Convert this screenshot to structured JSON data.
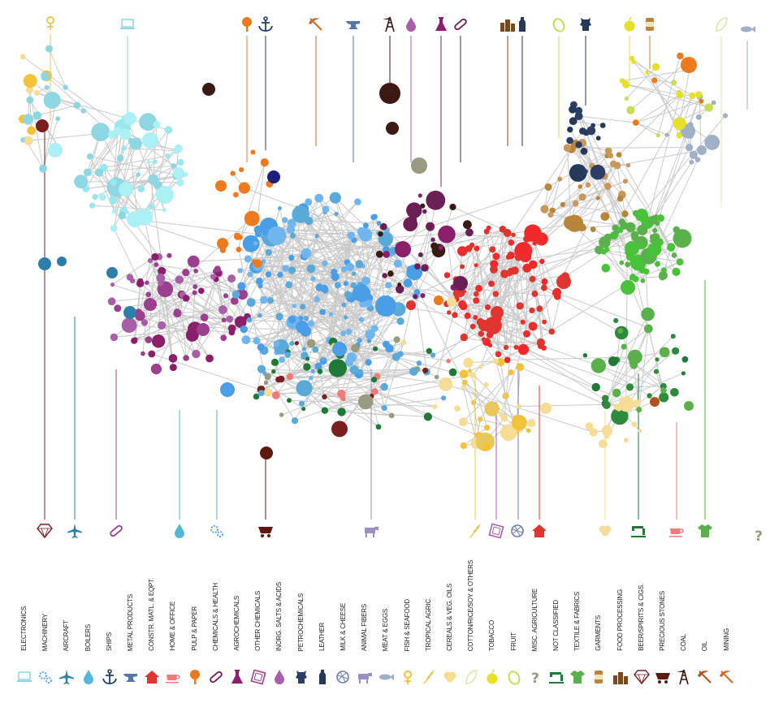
{
  "categories": [
    {
      "key": "electronics",
      "label": "ELECTRONICS",
      "color": "#8fd6e3",
      "icon": "laptop-icon"
    },
    {
      "key": "machinery",
      "label": "MACHINERY",
      "color": "#5aaad8",
      "icon": "gears-icon"
    },
    {
      "key": "aircraft",
      "label": "AIRCRAFT",
      "color": "#2b7fa8",
      "icon": "airplane-icon"
    },
    {
      "key": "boilers",
      "label": "BOILERS",
      "color": "#55b7d6",
      "icon": "water-drop-icon"
    },
    {
      "key": "ships",
      "label": "SHIPS",
      "color": "#1f3f73",
      "icon": "anchor-icon"
    },
    {
      "key": "metal_products",
      "label": "METAL PRODUCTS",
      "color": "#5577a8",
      "icon": "anvil-icon"
    },
    {
      "key": "constr_matl",
      "label": "CONSTR. MATL. & EQPT.",
      "color": "#e0352e",
      "icon": "house-icon"
    },
    {
      "key": "home_office",
      "label": "HOME & OFFICE",
      "color": "#ef7b7b",
      "icon": "teacup-icon"
    },
    {
      "key": "pulp_paper",
      "label": "PULP & PAPER",
      "color": "#ef7a1e",
      "icon": "tree-icon"
    },
    {
      "key": "chemicals_health",
      "label": "CHEMICALS & HEALTH",
      "color": "#6b1f55",
      "icon": "pill-icon"
    },
    {
      "key": "agrochemicals",
      "label": "AGROCHEMICALS",
      "color": "#8b1f6b",
      "icon": "flask-icon"
    },
    {
      "key": "other_chemicals",
      "label": "OTHER CHEMICALS",
      "color": "#9b3f8f",
      "icon": "crystal-icon"
    },
    {
      "key": "inorg_salts",
      "label": "INORG. SALTS & ACIDS",
      "color": "#a85fa8",
      "icon": "oil-drop-icon"
    },
    {
      "key": "petrochemicals",
      "label": "PETROCHEMICALS",
      "color": "#2b3e66",
      "icon": "leather-hide-icon"
    },
    {
      "key": "leather",
      "label": "LEATHER",
      "color": "#25395a",
      "icon": "milk-bottle-icon"
    },
    {
      "key": "milk_cheese",
      "label": "MILK & CHEESE",
      "color": "#6d7fa8",
      "icon": "yarn-ball-icon"
    },
    {
      "key": "animal_fibers",
      "label": "ANIMAL FIBERS",
      "color": "#9a8fc0",
      "icon": "cow-icon"
    },
    {
      "key": "meat_eggs",
      "label": "MEAT & EGGS",
      "color": "#9fb0c7",
      "icon": "fish-icon"
    },
    {
      "key": "fish_seafood",
      "label": "FISH & SEAFOOD",
      "color": "#f2c23a",
      "icon": "flower-icon"
    },
    {
      "key": "tropical_agric",
      "label": "TROPICAL AGRIC.",
      "color": "#e8c85a",
      "icon": "wheat-icon"
    },
    {
      "key": "cereals_oils",
      "label": "CEREALS & VEG. OILS",
      "color": "#f6dc94",
      "icon": "cotton-icon"
    },
    {
      "key": "cotton_rice",
      "label": "COTTON/RICE/SOY & OTHERS",
      "color": "#d8e8a8",
      "icon": "leaf-icon"
    },
    {
      "key": "tobacco",
      "label": "TOBACCO",
      "color": "#e6e02a",
      "icon": "apple-icon"
    },
    {
      "key": "fruit",
      "label": "FRUIT",
      "color": "#c8dc5a",
      "icon": "gourd-icon"
    },
    {
      "key": "misc_agriculture",
      "label": "MISC. AGRICULTURE",
      "color": "#9a9a80",
      "icon": "question-icon"
    },
    {
      "key": "not_classified",
      "label": "NOT CLASSIFIED",
      "color": "#1f7a3a",
      "icon": "sewing-machine-icon"
    },
    {
      "key": "textile_fabrics",
      "label": "TEXTILE & FABRICS",
      "color": "#5ab04a",
      "icon": "tshirt-icon"
    },
    {
      "key": "garments",
      "label": "GARMENTS",
      "color": "#b8863b",
      "icon": "can-icon"
    },
    {
      "key": "food_processing",
      "label": "FOOD PROCESSING",
      "color": "#7a4a1a",
      "icon": "bottles-icon"
    },
    {
      "key": "beer_spirits",
      "label": "BEER/SPIRITS & CIGS.",
      "color": "#7a1f1f",
      "icon": "diamond-icon"
    },
    {
      "key": "precious_stones",
      "label": "PRECIOUS STONES",
      "color": "#5a1a12",
      "icon": "coal-cart-icon"
    },
    {
      "key": "coal",
      "label": "COAL",
      "color": "#3a1a12",
      "icon": "oil-derrick-icon"
    },
    {
      "key": "oil",
      "label": "OIL",
      "color": "#b0531f",
      "icon": "pickaxe-icon"
    },
    {
      "key": "mining",
      "label": "MINING",
      "color": "#c86a2a",
      "icon": "mining-icon"
    }
  ]
}
